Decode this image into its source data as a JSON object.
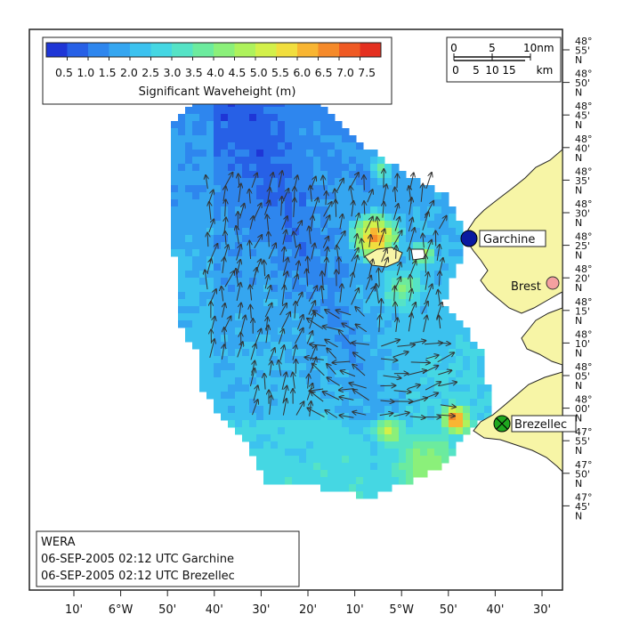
{
  "colorbar": {
    "tick_labels": [
      "0.5",
      "1.0",
      "1.5",
      "2.0",
      "2.5",
      "3.0",
      "3.5",
      "4.0",
      "4.5",
      "5.0",
      "5.5",
      "6.0",
      "6.5",
      "7.0",
      "7.5"
    ],
    "title": "Significant Waveheight (m)",
    "colors": [
      "#1f36d6",
      "#2760e6",
      "#2e86ee",
      "#35a6f0",
      "#3cc2ef",
      "#45d7e3",
      "#55e3c6",
      "#6ceb9e",
      "#8bf07a",
      "#aef25c",
      "#d3f04a",
      "#f1de3e",
      "#f8b532",
      "#f58a2a",
      "#ef5a24",
      "#e43020"
    ]
  },
  "scale_bar": {
    "nm_labels": [
      "0",
      "5",
      "10nm"
    ],
    "km_labels": [
      "0",
      "5",
      "10",
      "15",
      "km"
    ]
  },
  "right_axis_labels": [
    [
      "48°",
      "55'",
      "N"
    ],
    [
      "48°",
      "50'",
      "N"
    ],
    [
      "48°",
      "45'",
      "N"
    ],
    [
      "48°",
      "40'",
      "N"
    ],
    [
      "48°",
      "35'",
      "N"
    ],
    [
      "48°",
      "30'",
      "N"
    ],
    [
      "48°",
      "25'",
      "N"
    ],
    [
      "48°",
      "20'",
      "N"
    ],
    [
      "48°",
      "15'",
      "N"
    ],
    [
      "48°",
      "10'",
      "N"
    ],
    [
      "48°",
      "05'",
      "N"
    ],
    [
      "48°",
      "00'",
      "N"
    ],
    [
      "47°",
      "55'",
      "N"
    ],
    [
      "47°",
      "50'",
      "N"
    ],
    [
      "47°",
      "45'",
      "N"
    ]
  ],
  "bottom_axis_labels": [
    "10'",
    "6°W",
    "50'",
    "40'",
    "30'",
    "20'",
    "10'",
    "5°W",
    "50'",
    "40'",
    "30'"
  ],
  "stations": [
    {
      "name": "Garchine",
      "color": "#0a1aa0"
    },
    {
      "name": "Brest",
      "color": "#f4a0a0"
    },
    {
      "name": "Brezellec",
      "color": "#1fa81f"
    }
  ],
  "info_box": {
    "line1": "WERA",
    "line2": "06-SEP-2005 02:12 UTC  Garchine",
    "line3": "06-SEP-2005 02:12 UTC  Brezellec"
  }
}
